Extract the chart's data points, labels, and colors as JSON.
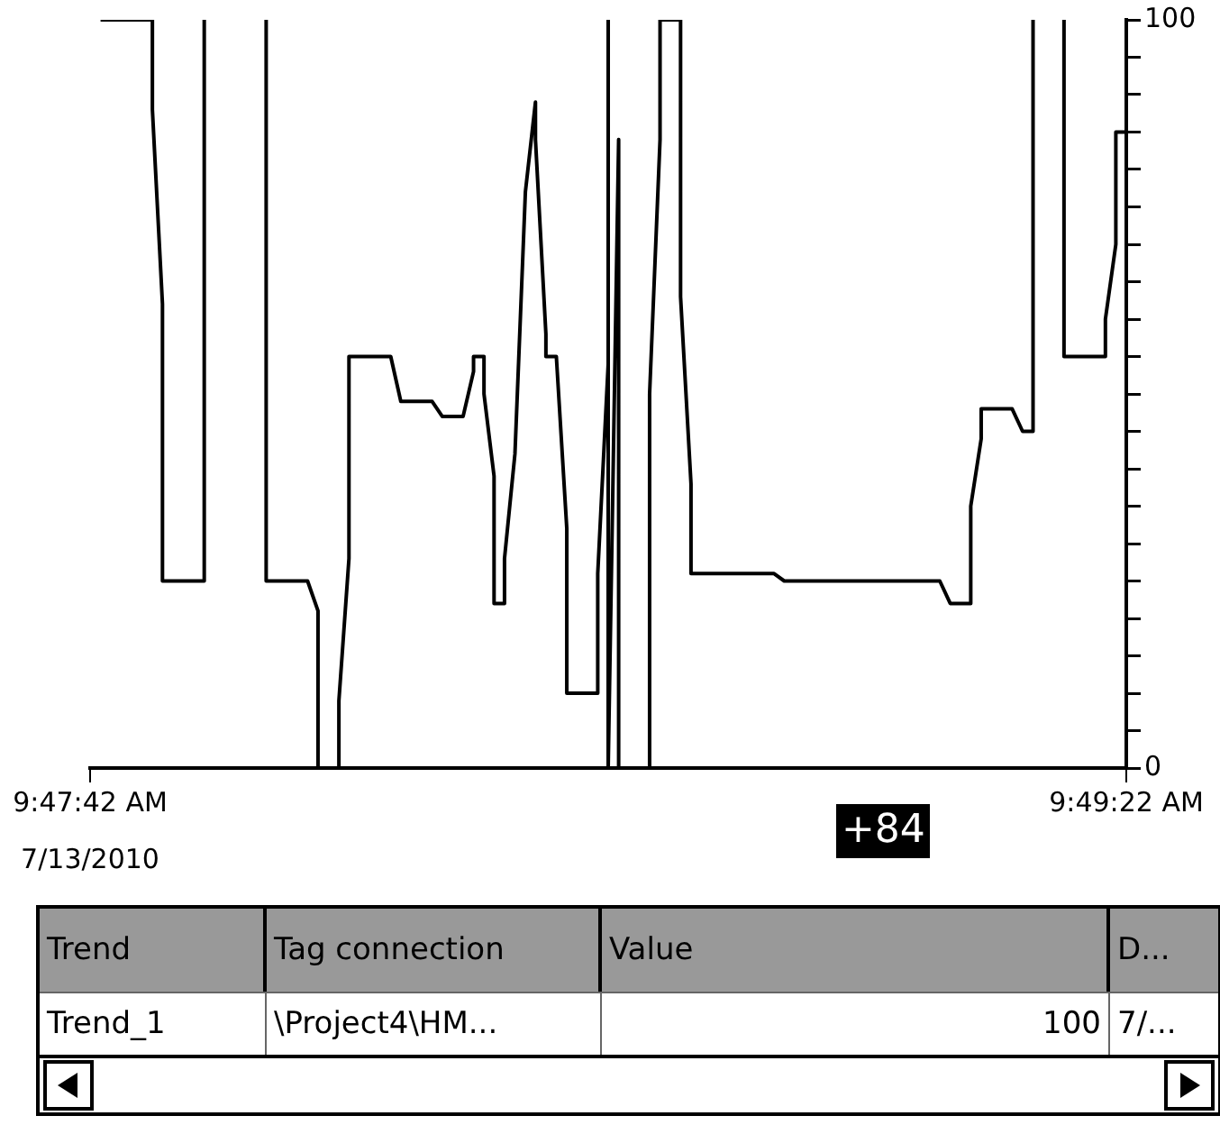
{
  "chart_data": {
    "type": "line",
    "x": [
      9.79528,
      9.79667,
      9.79667,
      9.79694,
      9.79694,
      9.79694,
      9.79806,
      9.79806,
      9.79806,
      9.79889,
      9.79972,
      9.79972,
      9.80083,
      9.80111,
      9.80111,
      9.80111,
      9.80111,
      9.80167,
      9.80167,
      9.80194,
      9.80194,
      9.80194,
      9.80306,
      9.80333,
      9.80417,
      9.80444,
      9.805,
      9.80528,
      9.80528,
      9.80556,
      9.80556,
      9.80583,
      9.80583,
      9.80583,
      9.80611,
      9.80611,
      9.80639,
      9.80667,
      9.80694,
      9.80694,
      9.80722,
      9.80722,
      9.8075,
      9.80778,
      9.80778,
      9.80861,
      9.80861,
      9.80889,
      9.80889,
      9.80889,
      9.80889,
      9.80917,
      9.80917,
      9.80917,
      9.80917,
      9.81,
      9.81,
      9.81,
      9.81028,
      9.81028,
      9.81083,
      9.81083,
      9.81083,
      9.81111,
      9.81111,
      9.81333,
      9.81361,
      9.81778,
      9.81806,
      9.81861,
      9.81861,
      9.81889,
      9.81889,
      9.81972,
      9.82,
      9.82028,
      9.82028,
      9.82028,
      9.82056,
      9.82111,
      9.82111,
      9.82222,
      9.82222,
      9.8225,
      9.8225,
      9.8225,
      9.82278
    ],
    "series": [
      {
        "color": "#000000",
        "values": [
          100,
          100,
          88,
          62,
          38,
          25,
          25,
          63,
          100,
          null,
          100,
          25,
          25,
          21,
          12,
          4,
          0,
          0,
          9,
          28,
          46,
          55,
          55,
          49,
          49,
          47,
          47,
          53,
          55,
          55,
          50,
          39,
          28,
          22,
          22,
          28,
          42,
          77,
          89,
          84,
          58,
          55,
          55,
          32,
          10,
          10,
          26,
          54,
          85,
          100,
          0,
          84,
          50,
          16,
          0,
          0,
          16,
          50,
          84,
          100,
          100,
          88,
          63,
          38,
          26,
          26,
          25,
          25,
          22,
          22,
          35,
          44,
          48,
          48,
          45,
          45,
          72,
          100,
          null,
          100,
          55,
          55,
          60,
          70,
          80,
          85,
          85
        ]
      }
    ],
    "xlim": [
      9.795,
      9.82278
    ],
    "xticks": [
      {
        "value": 9.795,
        "label": "9:47:42 AM"
      },
      {
        "value": 9.82278,
        "label": "9:49:22 AM"
      }
    ],
    "ylim": [
      0,
      100
    ],
    "yticks": [
      0,
      {
        "value": 5,
        "label": null
      },
      {
        "value": 10,
        "label": null
      },
      {
        "value": 15,
        "label": null
      },
      {
        "value": 20,
        "label": null
      },
      {
        "value": 25,
        "label": null
      },
      {
        "value": 30,
        "label": null
      },
      {
        "value": 35,
        "label": null
      },
      {
        "value": 40,
        "label": null
      },
      {
        "value": 45,
        "label": null
      },
      {
        "value": 50,
        "label": null
      },
      {
        "value": 55,
        "label": null
      },
      {
        "value": 60,
        "label": null
      },
      {
        "value": 65,
        "label": null
      },
      {
        "value": 70,
        "label": null
      },
      {
        "value": 75,
        "label": null
      },
      {
        "value": 80,
        "label": null
      },
      {
        "value": 85,
        "label": null
      },
      {
        "value": 90,
        "label": null
      },
      {
        "value": 95,
        "label": null
      },
      100
    ],
    "grid": false,
    "legend": false,
    "marker": "none",
    "line_style": "solid",
    "annotations": [
      "7/13/2010",
      "+84",
      "Trend",
      "Tag connection",
      "Value",
      "D...",
      "Trend_1",
      "\\Project4\\HM...",
      "100",
      "7/..."
    ]
  }
}
